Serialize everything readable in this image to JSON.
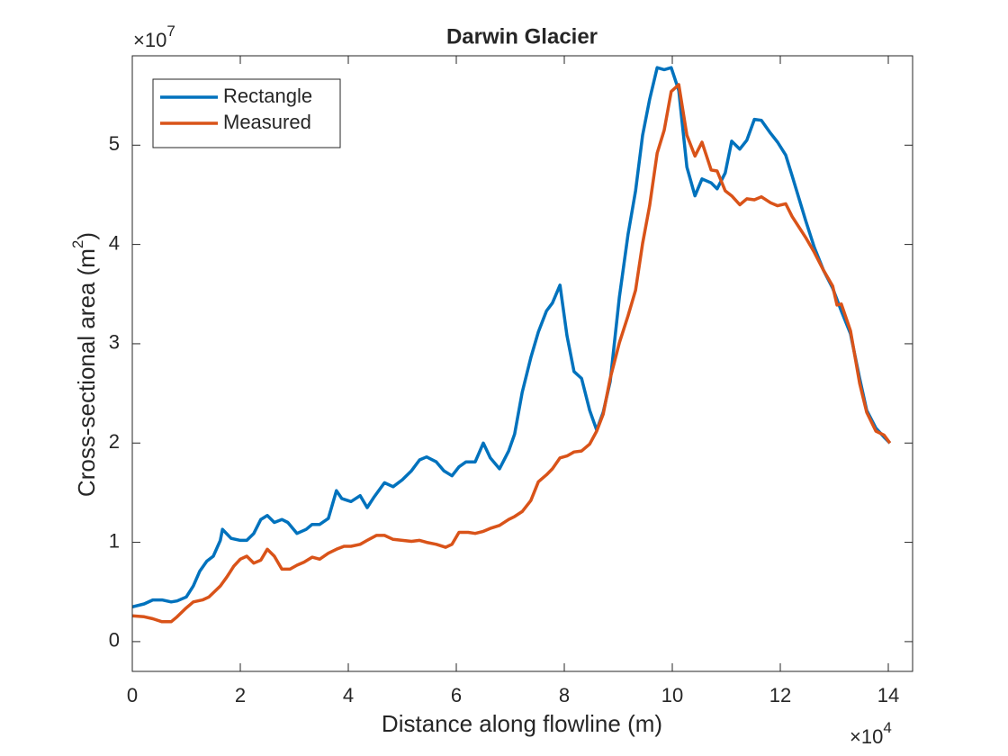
{
  "chart_data": {
    "type": "line",
    "title": "Darwin Glacier",
    "xlabel": "Distance along flowline (m)",
    "ylabel": [
      "Cross-sectional area (m",
      "2",
      ")"
    ],
    "x_multiplier": [
      "×10",
      "4"
    ],
    "y_multiplier": [
      "×10",
      "7"
    ],
    "xlim": [
      0,
      14.45
    ],
    "ylim": [
      -0.3,
      5.9
    ],
    "xticks": [
      0,
      2,
      4,
      6,
      8,
      10,
      12,
      14
    ],
    "yticks": [
      0,
      1,
      2,
      3,
      4,
      5
    ],
    "legend": "upper-left",
    "series": [
      {
        "name": "Rectangle",
        "color": "#0072bd",
        "x": [
          0,
          0.22,
          0.38,
          0.55,
          0.72,
          0.83,
          1.0,
          1.13,
          1.25,
          1.38,
          1.5,
          1.63,
          1.67,
          1.83,
          2.0,
          2.12,
          2.25,
          2.38,
          2.5,
          2.63,
          2.77,
          2.88,
          3.05,
          3.22,
          3.33,
          3.47,
          3.63,
          3.78,
          3.88,
          4.05,
          4.22,
          4.35,
          4.47,
          4.67,
          4.83,
          5.0,
          5.17,
          5.32,
          5.45,
          5.63,
          5.77,
          5.92,
          6.05,
          6.18,
          6.35,
          6.5,
          6.63,
          6.8,
          6.97,
          7.08,
          7.22,
          7.38,
          7.52,
          7.67,
          7.78,
          7.92,
          8.05,
          8.18,
          8.32,
          8.47,
          8.6,
          8.72,
          8.85,
          9.02,
          9.18,
          9.32,
          9.45,
          9.58,
          9.72,
          9.85,
          9.98,
          10.12,
          10.27,
          10.42,
          10.55,
          10.72,
          10.83,
          10.98,
          11.1,
          11.25,
          11.38,
          11.52,
          11.65,
          11.82,
          11.95,
          12.1,
          12.22,
          12.47,
          12.63,
          12.8,
          12.97,
          13.13,
          13.3,
          13.47,
          13.6,
          13.77,
          13.92,
          14.03
        ],
        "values": [
          0.35,
          0.38,
          0.42,
          0.42,
          0.4,
          0.41,
          0.45,
          0.56,
          0.71,
          0.81,
          0.86,
          1.02,
          1.13,
          1.04,
          1.02,
          1.02,
          1.09,
          1.23,
          1.27,
          1.2,
          1.23,
          1.2,
          1.09,
          1.13,
          1.18,
          1.18,
          1.24,
          1.52,
          1.44,
          1.41,
          1.47,
          1.35,
          1.45,
          1.6,
          1.56,
          1.63,
          1.72,
          1.83,
          1.86,
          1.81,
          1.72,
          1.67,
          1.76,
          1.81,
          1.81,
          2.0,
          1.85,
          1.74,
          1.92,
          2.09,
          2.51,
          2.86,
          3.12,
          3.33,
          3.41,
          3.59,
          3.08,
          2.72,
          2.65,
          2.33,
          2.13,
          2.31,
          2.62,
          3.47,
          4.1,
          4.54,
          5.1,
          5.46,
          5.78,
          5.76,
          5.78,
          5.55,
          4.78,
          4.49,
          4.66,
          4.62,
          4.56,
          4.72,
          5.04,
          4.96,
          5.05,
          5.26,
          5.25,
          5.12,
          5.03,
          4.9,
          4.69,
          4.24,
          3.97,
          3.74,
          3.56,
          3.33,
          3.1,
          2.65,
          2.33,
          2.15,
          2.06,
          2.0
        ]
      },
      {
        "name": "Measured",
        "color": "#d95319",
        "x": [
          0,
          0.22,
          0.38,
          0.55,
          0.72,
          0.83,
          1.0,
          1.13,
          1.3,
          1.42,
          1.63,
          1.75,
          1.88,
          2.0,
          2.12,
          2.25,
          2.38,
          2.5,
          2.63,
          2.77,
          2.92,
          3.05,
          3.18,
          3.33,
          3.47,
          3.63,
          3.78,
          3.92,
          4.05,
          4.22,
          4.35,
          4.52,
          4.67,
          4.83,
          5.0,
          5.17,
          5.32,
          5.45,
          5.63,
          5.8,
          5.92,
          6.05,
          6.22,
          6.35,
          6.5,
          6.63,
          6.8,
          6.97,
          7.08,
          7.22,
          7.38,
          7.52,
          7.67,
          7.78,
          7.92,
          8.05,
          8.18,
          8.32,
          8.47,
          8.6,
          8.72,
          8.85,
          9.02,
          9.18,
          9.32,
          9.45,
          9.58,
          9.72,
          9.85,
          9.98,
          10.12,
          10.27,
          10.42,
          10.55,
          10.72,
          10.83,
          10.98,
          11.1,
          11.25,
          11.38,
          11.52,
          11.65,
          11.82,
          11.95,
          12.1,
          12.22,
          12.47,
          12.63,
          12.8,
          12.97,
          13.05,
          13.13,
          13.3,
          13.47,
          13.6,
          13.77,
          13.92,
          14.03
        ],
        "values": [
          0.26,
          0.25,
          0.23,
          0.2,
          0.2,
          0.25,
          0.34,
          0.4,
          0.42,
          0.45,
          0.56,
          0.65,
          0.76,
          0.83,
          0.86,
          0.79,
          0.82,
          0.93,
          0.86,
          0.73,
          0.73,
          0.77,
          0.8,
          0.85,
          0.83,
          0.89,
          0.93,
          0.96,
          0.96,
          0.98,
          1.02,
          1.07,
          1.07,
          1.03,
          1.02,
          1.01,
          1.02,
          1.0,
          0.98,
          0.95,
          0.98,
          1.1,
          1.1,
          1.09,
          1.11,
          1.14,
          1.17,
          1.23,
          1.26,
          1.31,
          1.42,
          1.61,
          1.68,
          1.74,
          1.85,
          1.87,
          1.91,
          1.92,
          1.99,
          2.12,
          2.29,
          2.65,
          3.01,
          3.28,
          3.54,
          4.01,
          4.39,
          4.92,
          5.15,
          5.54,
          5.61,
          5.1,
          4.89,
          5.03,
          4.75,
          4.74,
          4.54,
          4.49,
          4.4,
          4.46,
          4.45,
          4.48,
          4.42,
          4.39,
          4.41,
          4.28,
          4.07,
          3.92,
          3.74,
          3.58,
          3.39,
          3.4,
          3.13,
          2.6,
          2.31,
          2.12,
          2.08,
          2.0
        ]
      }
    ]
  }
}
